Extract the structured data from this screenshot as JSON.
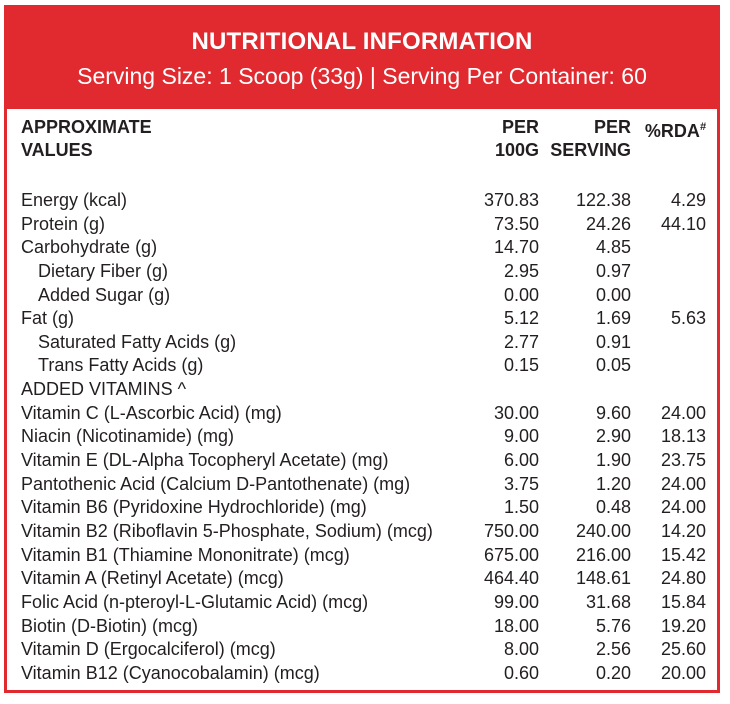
{
  "header": {
    "title": "NUTRITIONAL INFORMATION",
    "serving": "Serving Size: 1 Scoop (33g)  |  Serving Per Container: 60"
  },
  "columns": {
    "name_line1": "APPROXIMATE",
    "name_line2": "VALUES",
    "per100_line1": "PER",
    "per100_line2": "100G",
    "perserv_line1": "PER",
    "perserv_line2": "SERVING",
    "rda": "%RDA",
    "rda_mark": "#"
  },
  "rows": [
    {
      "name": "Energy (kcal)",
      "per100g": "370.83",
      "perServing": "122.38",
      "rda": "4.29",
      "indent": false
    },
    {
      "name": "Protein (g)",
      "per100g": "73.50",
      "perServing": "24.26",
      "rda": "44.10",
      "indent": false
    },
    {
      "name": "Carbohydrate (g)",
      "per100g": "14.70",
      "perServing": "4.85",
      "rda": "",
      "indent": false
    },
    {
      "name": "Dietary Fiber (g)",
      "per100g": "2.95",
      "perServing": "0.97",
      "rda": "",
      "indent": true
    },
    {
      "name": "Added Sugar (g)",
      "per100g": "0.00",
      "perServing": "0.00",
      "rda": "",
      "indent": true
    },
    {
      "name": "Fat (g)",
      "per100g": "5.12",
      "perServing": "1.69",
      "rda": "5.63",
      "indent": false
    },
    {
      "name": "Saturated Fatty Acids (g)",
      "per100g": "2.77",
      "perServing": "0.91",
      "rda": "",
      "indent": true
    },
    {
      "name": "Trans Fatty Acids (g)",
      "per100g": "0.15",
      "perServing": "0.05",
      "rda": "",
      "indent": true
    },
    {
      "name": "ADDED VITAMINS ^",
      "per100g": "",
      "perServing": "",
      "rda": "",
      "indent": false
    },
    {
      "name": "Vitamin C (L-Ascorbic Acid) (mg)",
      "per100g": "30.00",
      "perServing": "9.60",
      "rda": "24.00",
      "indent": false
    },
    {
      "name": "Niacin (Nicotinamide) (mg)",
      "per100g": "9.00",
      "perServing": "2.90",
      "rda": "18.13",
      "indent": false
    },
    {
      "name": "Vitamin E (DL-Alpha Tocopheryl Acetate) (mg)",
      "per100g": "6.00",
      "perServing": "1.90",
      "rda": "23.75",
      "indent": false
    },
    {
      "name": "Pantothenic Acid (Calcium D-Pantothenate) (mg)",
      "per100g": "3.75",
      "perServing": "1.20",
      "rda": "24.00",
      "indent": false
    },
    {
      "name": "Vitamin B6 (Pyridoxine Hydrochloride) (mg)",
      "per100g": "1.50",
      "perServing": "0.48",
      "rda": "24.00",
      "indent": false
    },
    {
      "name": "Vitamin B2 (Riboflavin 5-Phosphate, Sodium) (mcg)",
      "per100g": "750.00",
      "perServing": "240.00",
      "rda": "14.20",
      "indent": false
    },
    {
      "name": "Vitamin B1 (Thiamine Mononitrate) (mcg)",
      "per100g": "675.00",
      "perServing": "216.00",
      "rda": "15.42",
      "indent": false
    },
    {
      "name": "Vitamin A (Retinyl Acetate) (mcg)",
      "per100g": "464.40",
      "perServing": "148.61",
      "rda": "24.80",
      "indent": false
    },
    {
      "name": "Folic Acid (n-pteroyl-L-Glutamic Acid) (mcg)",
      "per100g": "99.00",
      "perServing": "31.68",
      "rda": "15.84",
      "indent": false
    },
    {
      "name": "Biotin (D-Biotin) (mcg)",
      "per100g": "18.00",
      "perServing": "5.76",
      "rda": "19.20",
      "indent": false
    },
    {
      "name": "Vitamin D (Ergocalciferol) (mcg)",
      "per100g": "8.00",
      "perServing": "2.56",
      "rda": "25.60",
      "indent": false
    },
    {
      "name": "Vitamin B12 (Cyanocobalamin) (mcg)",
      "per100g": "0.60",
      "perServing": "0.20",
      "rda": "20.00",
      "indent": false
    }
  ],
  "colors": {
    "accent": "#e02a2f",
    "text": "#231f20"
  }
}
